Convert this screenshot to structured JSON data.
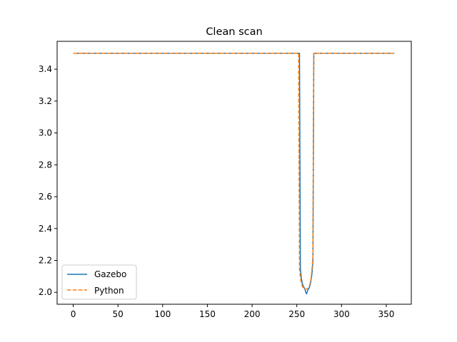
{
  "chart_data": {
    "type": "line",
    "title": "Clean scan",
    "xlabel": "",
    "ylabel": "",
    "xlim": [
      -18,
      378
    ],
    "ylim": [
      1.925,
      3.575
    ],
    "xticks": [
      0,
      50,
      100,
      150,
      200,
      250,
      300,
      350
    ],
    "yticks": [
      2.0,
      2.2,
      2.4,
      2.6,
      2.8,
      3.0,
      3.2,
      3.4
    ],
    "ytick_labels": [
      "2.0",
      "2.2",
      "2.4",
      "2.6",
      "2.8",
      "3.0",
      "3.2",
      "3.4"
    ],
    "grid": false,
    "legend_position": "lower-left",
    "series": [
      {
        "name": "Gazebo",
        "color": "#1f77b4",
        "style": "solid",
        "points": [
          [
            0,
            3.5
          ],
          [
            252,
            3.5
          ],
          [
            253,
            3.5
          ],
          [
            254,
            2.15
          ],
          [
            255,
            2.09
          ],
          [
            256,
            2.06
          ],
          [
            257,
            2.04
          ],
          [
            258,
            2.03
          ],
          [
            259,
            2.02
          ],
          [
            260,
            2.0
          ],
          [
            261,
            1.99
          ],
          [
            262,
            2.01
          ],
          [
            263,
            2.02
          ],
          [
            264,
            2.03
          ],
          [
            265,
            2.05
          ],
          [
            266,
            2.08
          ],
          [
            267,
            2.12
          ],
          [
            268,
            2.2
          ],
          [
            269,
            3.5
          ],
          [
            270,
            3.5
          ],
          [
            359,
            3.5
          ]
        ]
      },
      {
        "name": "Python",
        "color": "#ff7f0e",
        "style": "dashed",
        "points": [
          [
            0,
            3.5
          ],
          [
            252,
            3.5
          ],
          [
            253,
            2.15
          ],
          [
            254,
            2.09
          ],
          [
            255,
            2.06
          ],
          [
            256,
            2.04
          ],
          [
            257,
            2.03
          ],
          [
            258,
            2.025
          ],
          [
            259,
            2.02
          ],
          [
            260,
            2.02
          ],
          [
            261,
            2.02
          ],
          [
            262,
            2.025
          ],
          [
            263,
            2.03
          ],
          [
            264,
            2.04
          ],
          [
            265,
            2.06
          ],
          [
            266,
            2.09
          ],
          [
            267,
            2.15
          ],
          [
            268,
            2.22
          ],
          [
            269,
            3.5
          ],
          [
            359,
            3.5
          ]
        ]
      }
    ]
  }
}
